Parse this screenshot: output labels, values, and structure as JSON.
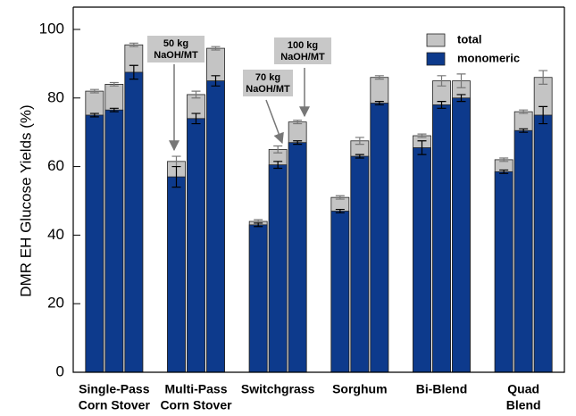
{
  "chart_data": {
    "type": "bar",
    "y_label": "DMR EH Glucose Yields (%)",
    "categories": [
      [
        "Single-Pass",
        "Corn Stover"
      ],
      [
        "Multi-Pass",
        "Corn Stover"
      ],
      [
        "Switchgrass"
      ],
      [
        "Sorghum"
      ],
      [
        "Bi-Blend"
      ],
      [
        "Quad",
        "Blend"
      ]
    ],
    "series": [
      {
        "name": "total",
        "color": "#c4c4c4",
        "values": [
          [
            82,
            84,
            95.5
          ],
          [
            61.5,
            81,
            94.5
          ],
          [
            44,
            65,
            73
          ],
          [
            51,
            67.5,
            86
          ],
          [
            69,
            85,
            85
          ],
          [
            62,
            76,
            86
          ]
        ],
        "errors": [
          [
            0.5,
            0.5,
            0.5
          ],
          [
            1.5,
            1,
            0.5
          ],
          [
            0.5,
            1,
            0.5
          ],
          [
            0.5,
            1,
            0.5
          ],
          [
            0.5,
            1.5,
            2
          ],
          [
            0.5,
            0.5,
            2
          ]
        ]
      },
      {
        "name": "monomeric",
        "color": "#0d3a8c",
        "values": [
          [
            75,
            76.5,
            87.5
          ],
          [
            57,
            74,
            85
          ],
          [
            43,
            60.5,
            67
          ],
          [
            47,
            63,
            78.5
          ],
          [
            65.5,
            78,
            80
          ],
          [
            58.5,
            70.5,
            75
          ]
        ],
        "errors": [
          [
            0.5,
            0.5,
            2
          ],
          [
            3,
            1.5,
            1.5
          ],
          [
            0.5,
            1,
            0.5
          ],
          [
            0.5,
            0.5,
            0.5
          ],
          [
            2,
            1,
            1
          ],
          [
            0.5,
            0.5,
            2.5
          ]
        ]
      }
    ],
    "annotations": [
      [
        "50 kg",
        "NaOH/MT"
      ],
      [
        "70 kg",
        "NaOH/MT"
      ],
      [
        "100 kg",
        "NaOH/MT"
      ]
    ],
    "ylim": [
      0,
      106.5
    ],
    "yticks": [
      0,
      20,
      40,
      60,
      80,
      100
    ],
    "legend": "upper right"
  }
}
